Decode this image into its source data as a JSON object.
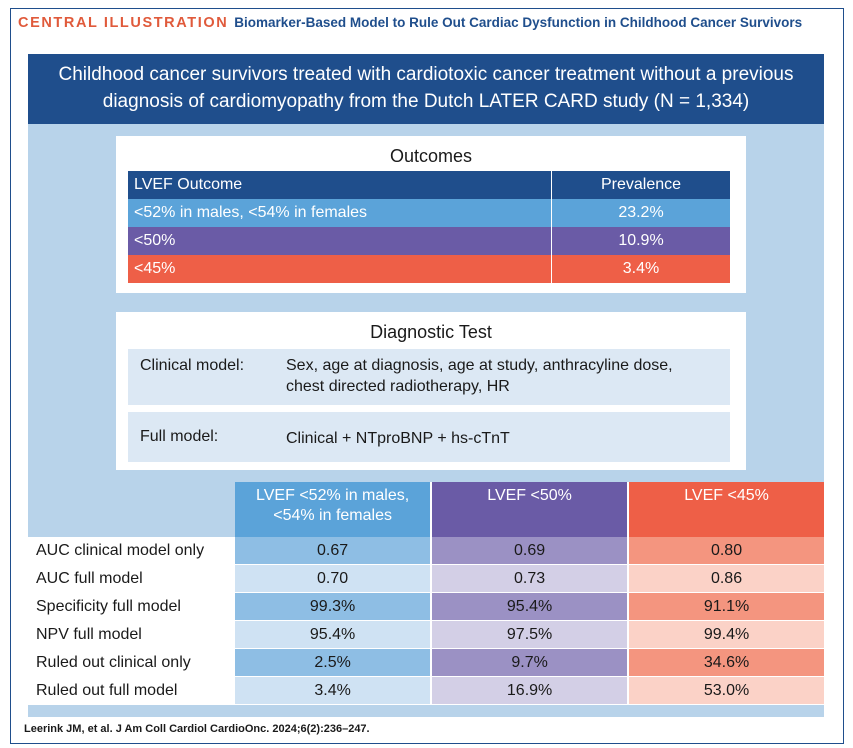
{
  "header": {
    "label": "CENTRAL ILLUSTRATION",
    "title": "Biomarker-Based Model to Rule Out Cardiac Dysfunction in Childhood Cancer Survivors"
  },
  "banner": {
    "line1": "Childhood cancer survivors treated with cardiotoxic cancer treatment without a previous",
    "line2": "diagnosis of cardiomyopathy from the Dutch LATER CARD study (N = 1,334)"
  },
  "outcomes": {
    "title": "Outcomes",
    "col_outcome": "LVEF Outcome",
    "col_prevalence": "Prevalence",
    "rows": [
      {
        "outcome": "<52% in males, <54% in females",
        "prevalence": "23.2%"
      },
      {
        "outcome": "<50%",
        "prevalence": "10.9%"
      },
      {
        "outcome": "<45%",
        "prevalence": "3.4%"
      }
    ]
  },
  "diagnostic": {
    "title": "Diagnostic Test",
    "clinical_label": "Clinical model:",
    "clinical_line1": "Sex, age at diagnosis, age at study, anthracyline dose,",
    "clinical_line2": "chest directed radiotherapy, HR",
    "full_label": "Full model:",
    "full_value": "Clinical + NTproBNP + hs-cTnT"
  },
  "results": {
    "col1_line1": "LVEF <52% in males,",
    "col1_line2": "<54% in females",
    "col2": "LVEF <50%",
    "col3": "LVEF <45%",
    "rows": [
      {
        "label": "AUC clinical model only",
        "v1": "0.67",
        "v2": "0.69",
        "v3": "0.80"
      },
      {
        "label": "AUC full model",
        "v1": "0.70",
        "v2": "0.73",
        "v3": "0.86"
      },
      {
        "label": "Specificity full model",
        "v1": "99.3%",
        "v2": "95.4%",
        "v3": "91.1%"
      },
      {
        "label": "NPV full model",
        "v1": "95.4%",
        "v2": "97.5%",
        "v3": "99.4%"
      },
      {
        "label": "Ruled out clinical only",
        "v1": "2.5%",
        "v2": "9.7%",
        "v3": "34.6%"
      },
      {
        "label": "Ruled out full model",
        "v1": "3.4%",
        "v2": "16.9%",
        "v3": "53.0%"
      }
    ]
  },
  "citation": "Leerink JM, et al. J Am Coll Cardiol CardioOnc. 2024;6(2):236–247.",
  "colors": {
    "navy": "#1f4e8c",
    "blue": "#5ba3d9",
    "purple": "#6a5ba6",
    "coral": "#ee5f47",
    "light_blue_bg": "#b8d3ea"
  }
}
